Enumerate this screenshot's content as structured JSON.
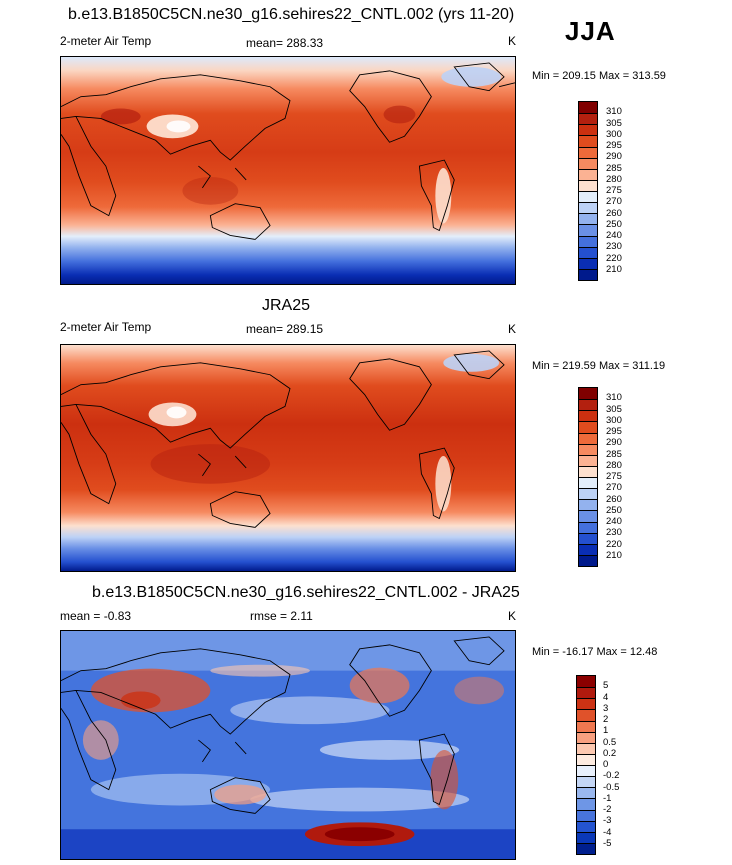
{
  "header": {
    "season": "JJA"
  },
  "panels": [
    {
      "title": "b.e13.B1850C5CN.ne30_g16.sehires22_CNTL.002 (yrs 11-20)",
      "left_label": "2-meter Air Temp",
      "center_label": "mean= 288.33",
      "units": "K",
      "range_label": "Min = 209.15 Max = 313.59",
      "colorbar": {
        "labels": [
          "310",
          "305",
          "300",
          "295",
          "290",
          "285",
          "280",
          "275",
          "270",
          "260",
          "250",
          "240",
          "230",
          "220",
          "210"
        ],
        "colors": [
          "#800000",
          "#b3200f",
          "#cc3010",
          "#e04c1e",
          "#ee6a3a",
          "#f68a60",
          "#fbb293",
          "#fde0cf",
          "#e3eefb",
          "#bdd2f6",
          "#93b2ee",
          "#6a90e6",
          "#4470dd",
          "#2450cf",
          "#0a2eb4",
          "#001a8c"
        ]
      }
    },
    {
      "title": "JRA25",
      "left_label": "2-meter Air Temp",
      "center_label": "mean= 289.15",
      "units": "K",
      "range_label": "Min = 219.59 Max = 311.19",
      "colorbar": {
        "labels": [
          "310",
          "305",
          "300",
          "295",
          "290",
          "285",
          "280",
          "275",
          "270",
          "260",
          "250",
          "240",
          "230",
          "220",
          "210"
        ],
        "colors": [
          "#800000",
          "#b3200f",
          "#cc3010",
          "#e04c1e",
          "#ee6a3a",
          "#f68a60",
          "#fbb293",
          "#fde0cf",
          "#e3eefb",
          "#bdd2f6",
          "#93b2ee",
          "#6a90e6",
          "#4470dd",
          "#2450cf",
          "#0a2eb4",
          "#001a8c"
        ]
      }
    },
    {
      "title": "b.e13.B1850C5CN.ne30_g16.sehires22_CNTL.002 - JRA25",
      "left_label": "mean =  -0.83",
      "center_label": "rmse =   2.11",
      "units": "K",
      "range_label": "Min = -16.17 Max =  12.48",
      "colorbar": {
        "labels": [
          "5",
          "4",
          "3",
          "2",
          "1",
          "0.5",
          "0.2",
          "0",
          "-0.2",
          "-0.5",
          "-1",
          "-2",
          "-3",
          "-4",
          "-5"
        ],
        "colors": [
          "#8b0000",
          "#b01a0e",
          "#cc3214",
          "#e0522a",
          "#f07850",
          "#f8a080",
          "#fcc8b0",
          "#fdebe0",
          "#e8f0fc",
          "#c4d6f5",
          "#9ab8ef",
          "#6e96e6",
          "#4874dd",
          "#2454d0",
          "#0a38b8",
          "#001f8e"
        ]
      }
    }
  ]
}
